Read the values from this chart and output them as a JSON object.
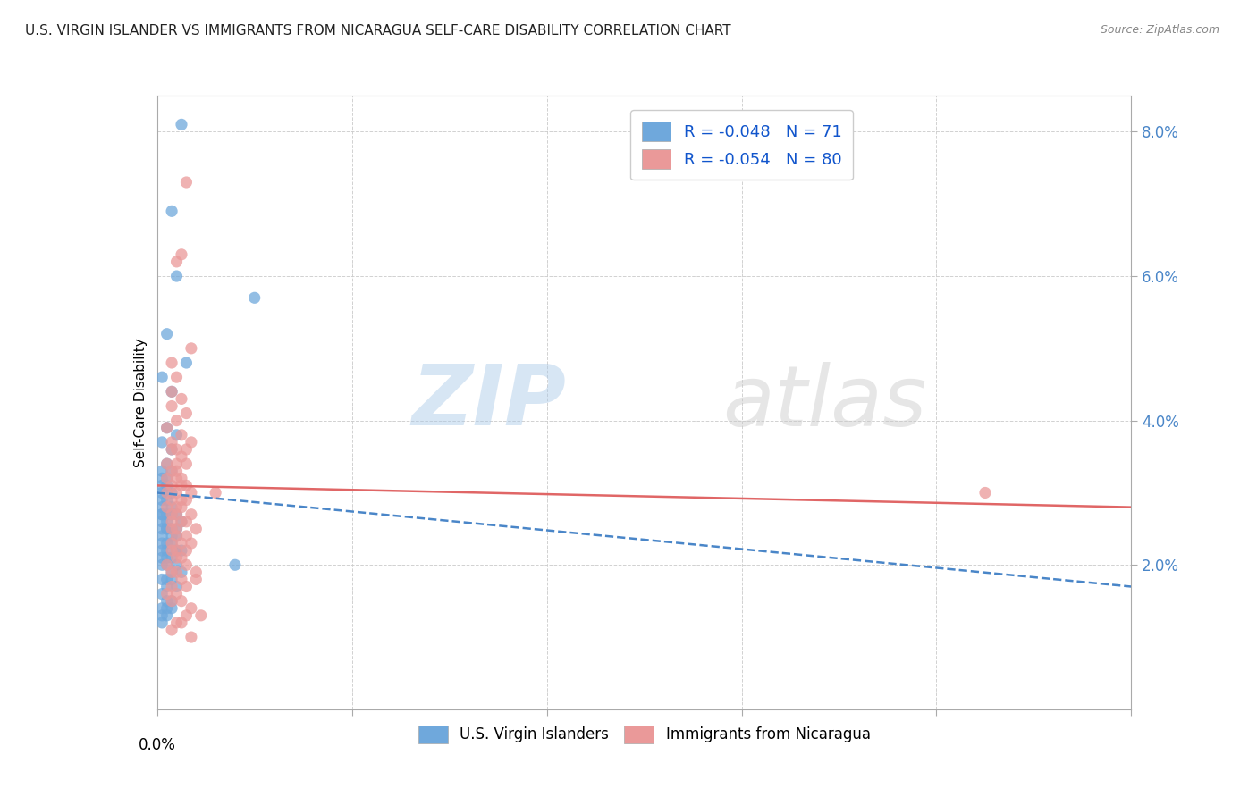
{
  "title": "U.S. VIRGIN ISLANDER VS IMMIGRANTS FROM NICARAGUA SELF-CARE DISABILITY CORRELATION CHART",
  "source": "Source: ZipAtlas.com",
  "ylabel": "Self-Care Disability",
  "xlim": [
    0.0,
    0.2
  ],
  "ylim": [
    0.0,
    0.085
  ],
  "yticks": [
    0.02,
    0.04,
    0.06,
    0.08
  ],
  "ytick_labels": [
    "2.0%",
    "4.0%",
    "6.0%",
    "8.0%"
  ],
  "xticks": [
    0.0,
    0.04,
    0.08,
    0.12,
    0.16,
    0.2
  ],
  "legend_blue_R": "-0.048",
  "legend_blue_N": "71",
  "legend_pink_R": "-0.054",
  "legend_pink_N": "80",
  "blue_color": "#6fa8dc",
  "pink_color": "#ea9999",
  "blue_line_color": "#4a86c8",
  "pink_line_color": "#e06666",
  "watermark_zip": "ZIP",
  "watermark_atlas": "atlas",
  "blue_scatter_x": [
    0.005,
    0.003,
    0.004,
    0.002,
    0.006,
    0.001,
    0.003,
    0.002,
    0.004,
    0.001,
    0.003,
    0.002,
    0.001,
    0.003,
    0.002,
    0.001,
    0.002,
    0.001,
    0.003,
    0.001,
    0.002,
    0.001,
    0.003,
    0.001,
    0.002,
    0.001,
    0.003,
    0.001,
    0.004,
    0.001,
    0.002,
    0.005,
    0.002,
    0.003,
    0.004,
    0.001,
    0.002,
    0.001,
    0.003,
    0.004,
    0.002,
    0.001,
    0.003,
    0.005,
    0.002,
    0.004,
    0.001,
    0.002,
    0.003,
    0.001,
    0.004,
    0.002,
    0.001,
    0.003,
    0.005,
    0.002,
    0.001,
    0.003,
    0.002,
    0.004,
    0.001,
    0.002,
    0.003,
    0.001,
    0.002,
    0.003,
    0.001,
    0.002,
    0.001,
    0.016,
    0.02
  ],
  "blue_scatter_y": [
    0.081,
    0.069,
    0.06,
    0.052,
    0.048,
    0.046,
    0.044,
    0.039,
    0.038,
    0.037,
    0.036,
    0.034,
    0.033,
    0.033,
    0.032,
    0.032,
    0.031,
    0.031,
    0.03,
    0.03,
    0.029,
    0.029,
    0.028,
    0.028,
    0.027,
    0.027,
    0.027,
    0.027,
    0.027,
    0.026,
    0.026,
    0.026,
    0.025,
    0.025,
    0.025,
    0.025,
    0.025,
    0.024,
    0.024,
    0.024,
    0.023,
    0.023,
    0.023,
    0.022,
    0.022,
    0.022,
    0.022,
    0.021,
    0.021,
    0.021,
    0.02,
    0.02,
    0.02,
    0.019,
    0.019,
    0.018,
    0.018,
    0.018,
    0.017,
    0.017,
    0.016,
    0.015,
    0.015,
    0.014,
    0.014,
    0.014,
    0.013,
    0.013,
    0.012,
    0.02,
    0.057
  ],
  "pink_scatter_x": [
    0.006,
    0.005,
    0.004,
    0.007,
    0.003,
    0.004,
    0.003,
    0.005,
    0.003,
    0.006,
    0.004,
    0.002,
    0.005,
    0.003,
    0.007,
    0.004,
    0.006,
    0.003,
    0.005,
    0.004,
    0.002,
    0.006,
    0.004,
    0.003,
    0.005,
    0.002,
    0.004,
    0.006,
    0.003,
    0.005,
    0.002,
    0.004,
    0.007,
    0.003,
    0.005,
    0.006,
    0.004,
    0.002,
    0.005,
    0.003,
    0.007,
    0.004,
    0.006,
    0.003,
    0.005,
    0.004,
    0.008,
    0.003,
    0.006,
    0.004,
    0.005,
    0.003,
    0.007,
    0.004,
    0.006,
    0.003,
    0.005,
    0.004,
    0.002,
    0.006,
    0.004,
    0.003,
    0.008,
    0.005,
    0.003,
    0.006,
    0.004,
    0.002,
    0.005,
    0.003,
    0.007,
    0.009,
    0.006,
    0.004,
    0.005,
    0.003,
    0.007,
    0.012,
    0.008,
    0.17
  ],
  "pink_scatter_y": [
    0.073,
    0.063,
    0.062,
    0.05,
    0.048,
    0.046,
    0.044,
    0.043,
    0.042,
    0.041,
    0.04,
    0.039,
    0.038,
    0.037,
    0.037,
    0.036,
    0.036,
    0.036,
    0.035,
    0.034,
    0.034,
    0.034,
    0.033,
    0.033,
    0.032,
    0.032,
    0.032,
    0.031,
    0.031,
    0.031,
    0.03,
    0.03,
    0.03,
    0.029,
    0.029,
    0.029,
    0.028,
    0.028,
    0.028,
    0.027,
    0.027,
    0.027,
    0.026,
    0.026,
    0.026,
    0.025,
    0.025,
    0.025,
    0.024,
    0.024,
    0.023,
    0.023,
    0.023,
    0.022,
    0.022,
    0.022,
    0.021,
    0.021,
    0.02,
    0.02,
    0.019,
    0.019,
    0.018,
    0.018,
    0.017,
    0.017,
    0.016,
    0.016,
    0.015,
    0.015,
    0.014,
    0.013,
    0.013,
    0.012,
    0.012,
    0.011,
    0.01,
    0.03,
    0.019,
    0.03
  ],
  "blue_trend_x": [
    0.0,
    0.2
  ],
  "blue_trend_y": [
    0.03,
    0.017
  ],
  "pink_trend_x": [
    0.0,
    0.2
  ],
  "pink_trend_y": [
    0.031,
    0.028
  ],
  "background_color": "#ffffff",
  "grid_color": "#cccccc"
}
